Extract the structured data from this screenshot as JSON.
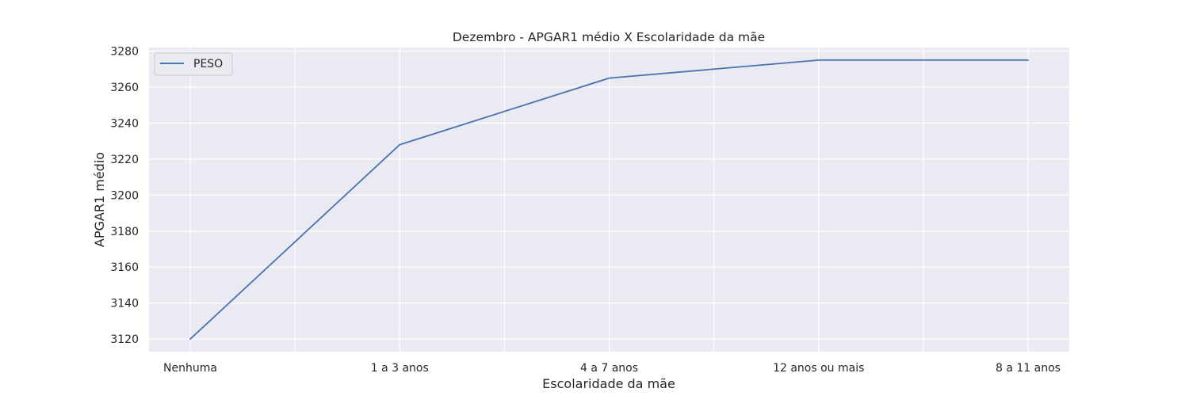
{
  "chart_data": {
    "type": "line",
    "title": "Dezembro - APGAR1 médio X Escolaridade da mãe",
    "xlabel": "Escolaridade da mãe",
    "ylabel": "APGAR1 médio",
    "categories": [
      "Nenhuma",
      "1 a 3 anos",
      "4 a 7 anos",
      "12 anos ou mais",
      "8 a 11 anos"
    ],
    "series": [
      {
        "name": "PESO",
        "values": [
          3120,
          3228,
          3265,
          3275,
          3275
        ],
        "color": "#4c72b0"
      }
    ],
    "ylim": [
      3113,
      3282
    ],
    "yticks": [
      3120,
      3140,
      3160,
      3180,
      3200,
      3220,
      3240,
      3260,
      3280
    ],
    "grid": true,
    "legend_position": "top-left",
    "background_color": "#eaeaf2",
    "grid_color": "#ffffff"
  }
}
